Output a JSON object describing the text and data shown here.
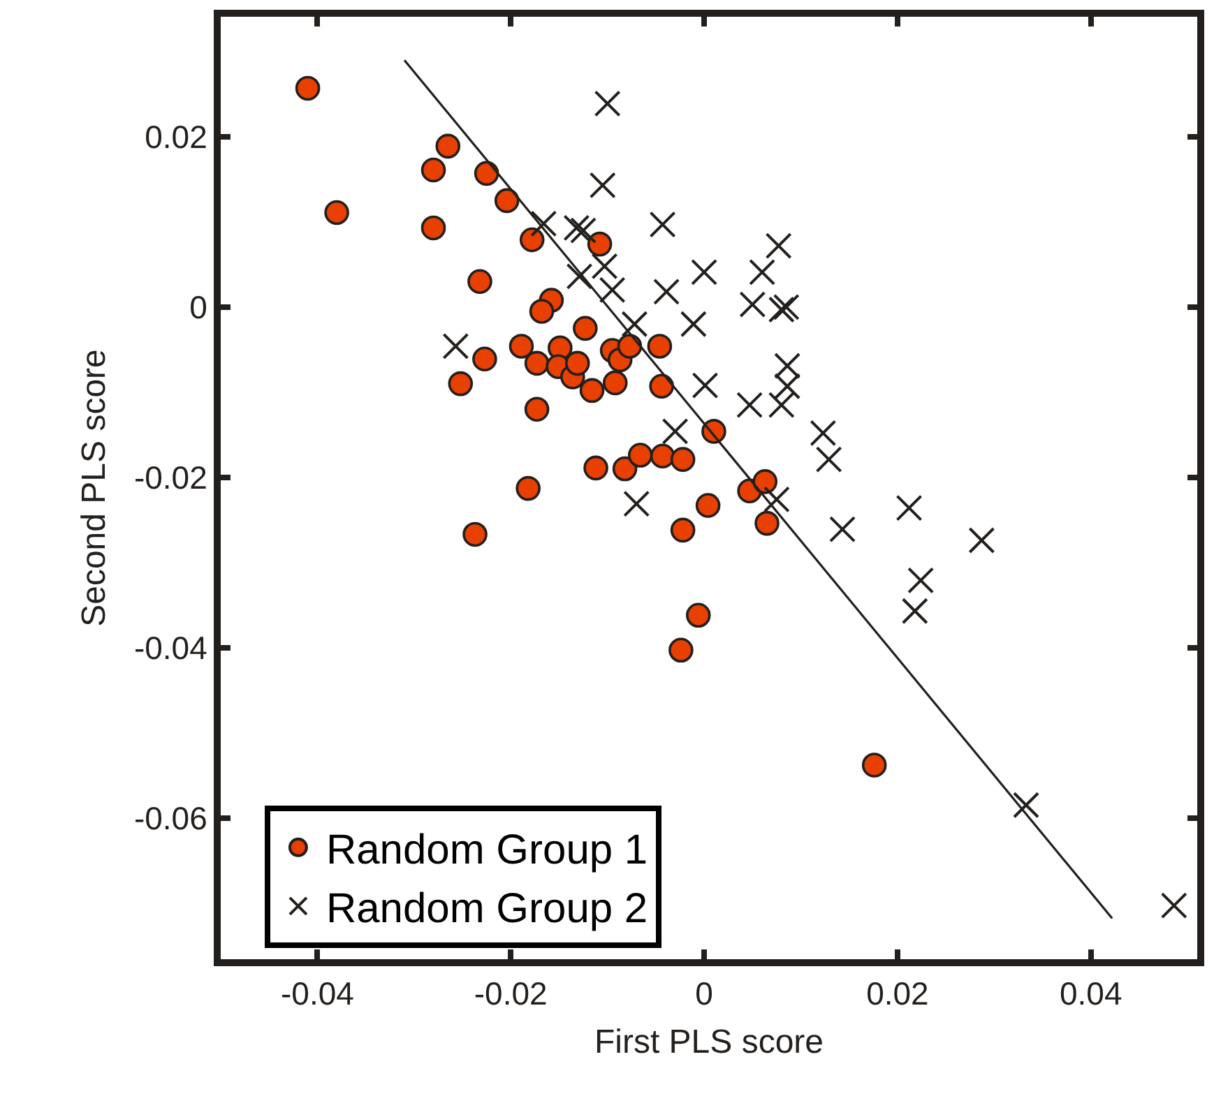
{
  "chart_data": {
    "type": "scatter",
    "xlabel": "First PLS score",
    "ylabel": "Second PLS score",
    "xlim": [
      -0.05,
      0.051
    ],
    "ylim": [
      -0.0766,
      0.0341
    ],
    "xticks": [
      -0.04,
      -0.02,
      0,
      0.02,
      0.04
    ],
    "yticks": [
      -0.06,
      -0.04,
      -0.02,
      0,
      0.02
    ],
    "legend": "bottom left",
    "series": [
      {
        "name": "Random Group 1",
        "marker": "circle",
        "color": "#e84000",
        "x": [
          -0.041,
          -0.038,
          -0.0265,
          -0.028,
          -0.0225,
          -0.028,
          -0.0204,
          -0.0178,
          -0.0108,
          -0.0232,
          -0.0158,
          -0.0168,
          -0.0252,
          -0.0227,
          -0.0189,
          -0.0173,
          -0.0149,
          -0.0151,
          -0.0136,
          -0.0131,
          -0.0123,
          -0.0116,
          -0.0095,
          -0.0092,
          -0.0087,
          -0.0077,
          -0.0046,
          -0.0044,
          -0.0173,
          -0.0112,
          -0.0082,
          -0.0066,
          -0.0043,
          -0.0022,
          -0.0182,
          -0.0237,
          0.001,
          -0.0022,
          0.0004,
          -0.0006,
          -0.0024,
          0.0047,
          0.0063,
          0.0065,
          0.0176
        ],
        "values": [
          0.0257,
          0.0111,
          0.0189,
          0.0161,
          0.0157,
          0.0093,
          0.0125,
          0.0079,
          0.0074,
          0.003,
          0.0008,
          -0.0005,
          -0.009,
          -0.0061,
          -0.0046,
          -0.0066,
          -0.0048,
          -0.007,
          -0.0082,
          -0.0066,
          -0.0025,
          -0.0098,
          -0.0051,
          -0.0089,
          -0.0062,
          -0.0046,
          -0.0046,
          -0.0093,
          -0.012,
          -0.0189,
          -0.019,
          -0.0174,
          -0.0175,
          -0.0179,
          -0.0213,
          -0.0267,
          -0.0146,
          -0.0262,
          -0.0233,
          -0.0362,
          -0.0403,
          -0.0216,
          -0.0205,
          -0.0254,
          -0.0538
        ]
      },
      {
        "name": "Random Group 2",
        "marker": "cross",
        "color": "#231f1c",
        "x": [
          -0.01,
          -0.0105,
          -0.0043,
          -0.0166,
          -0.0132,
          -0.0125,
          -0.0103,
          -0.0129,
          -0.0095,
          0.0,
          -0.0039,
          -0.0011,
          -0.0072,
          0.006,
          0.0077,
          0.005,
          0.008,
          0.0085,
          -0.0257,
          0.0001,
          0.0047,
          -0.003,
          -0.007,
          0.0086,
          0.0086,
          0.008,
          0.0123,
          0.0129,
          0.0075,
          0.0143,
          0.0212,
          0.0287,
          0.0224,
          0.0218,
          0.0333,
          0.0486
        ],
        "values": [
          0.0239,
          0.0143,
          0.0097,
          0.0098,
          0.0093,
          0.009,
          0.0048,
          0.0036,
          0.002,
          0.0041,
          0.0018,
          -0.002,
          -0.002,
          0.0041,
          0.0072,
          0.0003,
          -0.0003,
          0.0,
          -0.0046,
          -0.0092,
          -0.0115,
          -0.0146,
          -0.0231,
          -0.0069,
          -0.0093,
          -0.0115,
          -0.0148,
          -0.0179,
          -0.0226,
          -0.0261,
          -0.0236,
          -0.0274,
          -0.0321,
          -0.0357,
          -0.0585,
          -0.0703
        ]
      },
      {
        "type": "line",
        "color": "#231f1c",
        "line_style": "solid",
        "x": [
          -0.031,
          0.0422
        ],
        "values": [
          0.029,
          -0.0718
        ]
      }
    ]
  }
}
